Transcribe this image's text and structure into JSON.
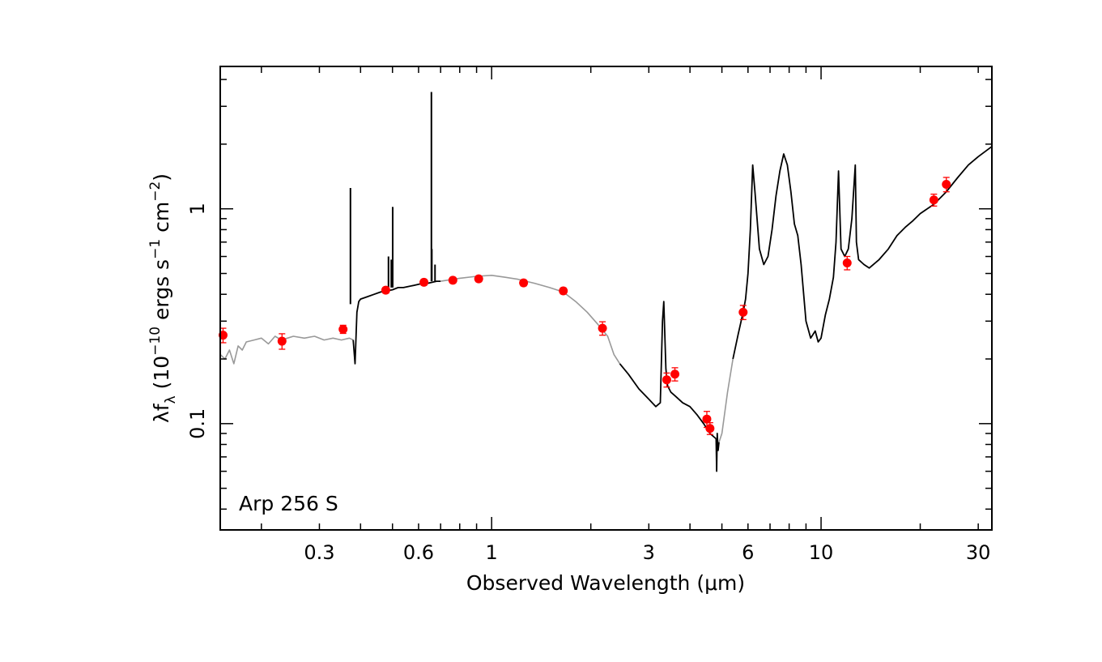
{
  "chart_data": {
    "type": "scatter",
    "title": "",
    "annotation": "Arp 256 S",
    "xlabel": "Observed Wavelength (μm)",
    "ylabel": {
      "lambda_f": "λf",
      "sub": "λ",
      "open": " (10",
      "exp1": "−10",
      "mid1": " ergs s",
      "exp2": "−1",
      "mid2": " cm",
      "exp3": "−2",
      "close": ")"
    },
    "x_scale": "log",
    "y_scale": "log",
    "xlim": [
      0.15,
      33
    ],
    "ylim": [
      0.032,
      4.6
    ],
    "x_ticks": [
      {
        "value": 0.3,
        "label": "0.3"
      },
      {
        "value": 0.6,
        "label": "0.6"
      },
      {
        "value": 1,
        "label": "1"
      },
      {
        "value": 3,
        "label": "3"
      },
      {
        "value": 6,
        "label": "6"
      },
      {
        "value": 10,
        "label": "10"
      },
      {
        "value": 30,
        "label": "30"
      }
    ],
    "y_ticks": [
      {
        "value": 0.1,
        "label": "0.1"
      },
      {
        "value": 1,
        "label": "1"
      }
    ],
    "grid": false,
    "colors": {
      "points": "#ff0000",
      "observed_spectrum": "#000000",
      "model_spectrum": "#999999"
    },
    "points": [
      {
        "x": 0.153,
        "y": 0.258,
        "yerr": 0.02
      },
      {
        "x": 0.231,
        "y": 0.242,
        "yerr": 0.02
      },
      {
        "x": 0.354,
        "y": 0.275,
        "yerr": 0.012
      },
      {
        "x": 0.477,
        "y": 0.418,
        "yerr": 0.013
      },
      {
        "x": 0.623,
        "y": 0.455,
        "yerr": 0.014
      },
      {
        "x": 0.7625,
        "y": 0.465,
        "yerr": 0.014
      },
      {
        "x": 0.9134,
        "y": 0.472,
        "yerr": 0.014
      },
      {
        "x": 1.25,
        "y": 0.452,
        "yerr": 0.014
      },
      {
        "x": 1.65,
        "y": 0.415,
        "yerr": 0.013
      },
      {
        "x": 2.17,
        "y": 0.278,
        "yerr": 0.02
      },
      {
        "x": 3.4,
        "y": 0.16,
        "yerr": 0.012
      },
      {
        "x": 3.6,
        "y": 0.17,
        "yerr": 0.012
      },
      {
        "x": 4.5,
        "y": 0.105,
        "yerr": 0.009
      },
      {
        "x": 4.6,
        "y": 0.095,
        "yerr": 0.006
      },
      {
        "x": 5.8,
        "y": 0.33,
        "yerr": 0.025
      },
      {
        "x": 12.0,
        "y": 0.56,
        "yerr": 0.04
      },
      {
        "x": 22.0,
        "y": 1.1,
        "yerr": 0.07
      },
      {
        "x": 24.0,
        "y": 1.3,
        "yerr": 0.1
      }
    ],
    "series": [
      {
        "style": "model-uv",
        "x": [
          0.15,
          0.155,
          0.16,
          0.165,
          0.17,
          0.175,
          0.18,
          0.19,
          0.2,
          0.21,
          0.22,
          0.23,
          0.24,
          0.25,
          0.27,
          0.29,
          0.31,
          0.33,
          0.35,
          0.37,
          0.38
        ],
        "y": [
          0.21,
          0.2,
          0.22,
          0.19,
          0.23,
          0.22,
          0.24,
          0.245,
          0.25,
          0.235,
          0.255,
          0.245,
          0.25,
          0.255,
          0.25,
          0.255,
          0.245,
          0.25,
          0.245,
          0.25,
          0.245
        ]
      },
      {
        "style": "observed-optical",
        "x": [
          0.38,
          0.385,
          0.39,
          0.395,
          0.4,
          0.42,
          0.44,
          0.46,
          0.48,
          0.5,
          0.52,
          0.54,
          0.56,
          0.58,
          0.6,
          0.62,
          0.64,
          0.66,
          0.68,
          0.7
        ],
        "y": [
          0.245,
          0.19,
          0.33,
          0.37,
          0.38,
          0.39,
          0.4,
          0.41,
          0.415,
          0.42,
          0.43,
          0.43,
          0.435,
          0.44,
          0.445,
          0.45,
          0.45,
          0.455,
          0.46,
          0.46
        ]
      },
      {
        "style": "model-nir",
        "x": [
          0.7,
          0.8,
          0.9,
          1.0,
          1.1,
          1.2,
          1.35,
          1.5,
          1.65,
          1.8,
          1.95,
          2.1,
          2.25,
          2.35,
          2.45
        ],
        "y": [
          0.46,
          0.475,
          0.485,
          0.49,
          0.48,
          0.47,
          0.45,
          0.43,
          0.41,
          0.37,
          0.33,
          0.29,
          0.255,
          0.21,
          0.19
        ]
      },
      {
        "style": "observed-irs-short",
        "x": [
          2.45,
          2.6,
          2.8,
          3.0,
          3.15,
          3.25,
          3.3,
          3.33,
          3.38,
          3.42,
          3.5,
          3.6,
          3.8,
          4.0,
          4.2,
          4.4,
          4.6,
          4.8
        ],
        "y": [
          0.19,
          0.17,
          0.145,
          0.13,
          0.12,
          0.125,
          0.3,
          0.37,
          0.18,
          0.15,
          0.14,
          0.135,
          0.125,
          0.12,
          0.11,
          0.1,
          0.09,
          0.085
        ]
      },
      {
        "style": "observed-irs-spikes",
        "x": [
          4.8,
          4.82,
          4.84,
          4.87,
          4.9
        ],
        "y": [
          0.085,
          0.06,
          0.09,
          0.075,
          0.082
        ]
      },
      {
        "style": "model-gap",
        "x": [
          4.9,
          5.0,
          5.2,
          5.4
        ],
        "y": [
          0.082,
          0.09,
          0.14,
          0.2
        ]
      },
      {
        "style": "observed-irs",
        "x": [
          5.4,
          5.6,
          5.8,
          5.9,
          6.0,
          6.1,
          6.2,
          6.3,
          6.5,
          6.7,
          6.9,
          7.1,
          7.3,
          7.5,
          7.7,
          7.9,
          8.1,
          8.3,
          8.5,
          8.7,
          9.0,
          9.3,
          9.6,
          9.8,
          10.0,
          10.3,
          10.6,
          10.9,
          11.1,
          11.3,
          11.5,
          11.8,
          12.1,
          12.4,
          12.7,
          12.8,
          13.0,
          13.5,
          14.0,
          15.0,
          16.0,
          17.0,
          18.0,
          19.0,
          20.0,
          22.0,
          24.0,
          26.0,
          28.0,
          30.0,
          33.0
        ],
        "y": [
          0.2,
          0.26,
          0.33,
          0.38,
          0.5,
          0.8,
          1.6,
          1.2,
          0.65,
          0.55,
          0.6,
          0.8,
          1.15,
          1.5,
          1.8,
          1.6,
          1.2,
          0.85,
          0.75,
          0.55,
          0.3,
          0.25,
          0.27,
          0.24,
          0.25,
          0.32,
          0.38,
          0.48,
          0.7,
          1.5,
          0.65,
          0.6,
          0.65,
          0.9,
          1.6,
          0.7,
          0.58,
          0.55,
          0.53,
          0.58,
          0.65,
          0.75,
          0.82,
          0.88,
          0.95,
          1.05,
          1.2,
          1.4,
          1.6,
          1.75,
          1.95
        ]
      }
    ],
    "emission_lines": [
      {
        "x": 0.3727,
        "y_base": 0.36,
        "y_top": 1.25
      },
      {
        "x": 0.4862,
        "y_base": 0.42,
        "y_top": 0.6
      },
      {
        "x": 0.5007,
        "y_base": 0.43,
        "y_top": 1.02
      },
      {
        "x": 0.4959,
        "y_base": 0.43,
        "y_top": 0.58
      },
      {
        "x": 0.6583,
        "y_base": 0.46,
        "y_top": 0.65
      },
      {
        "x": 0.6563,
        "y_base": 0.46,
        "y_top": 3.5
      },
      {
        "x": 0.6731,
        "y_base": 0.46,
        "y_top": 0.55
      }
    ]
  }
}
